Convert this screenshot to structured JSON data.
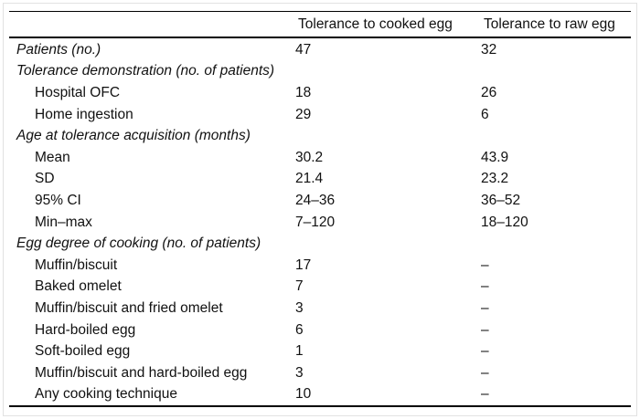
{
  "page": {
    "background": "#ffffff",
    "frame_color": "#e2e2e2",
    "rule_color": "#000000",
    "text_color": "#111111"
  },
  "table": {
    "header": {
      "col_label": "",
      "col_cooked": "Tolerance to cooked egg",
      "col_raw": "Tolerance to raw egg"
    },
    "rows": [
      {
        "label": "Patients (no.)",
        "italic": true,
        "indent": false,
        "cooked": "47",
        "raw": "32"
      },
      {
        "label": "Tolerance demonstration (no. of patients)",
        "italic": true,
        "indent": false,
        "cooked": "",
        "raw": ""
      },
      {
        "label": "Hospital OFC",
        "italic": false,
        "indent": true,
        "cooked": "18",
        "raw": "26"
      },
      {
        "label": "Home ingestion",
        "italic": false,
        "indent": true,
        "cooked": "29",
        "raw": "6"
      },
      {
        "label": "Age at tolerance acquisition (months)",
        "italic": true,
        "indent": false,
        "cooked": "",
        "raw": ""
      },
      {
        "label": "Mean",
        "italic": false,
        "indent": true,
        "cooked": "30.2",
        "raw": "43.9"
      },
      {
        "label": "SD",
        "italic": false,
        "indent": true,
        "cooked": "21.4",
        "raw": "23.2"
      },
      {
        "label": "95% CI",
        "italic": false,
        "indent": true,
        "cooked": "24–36",
        "raw": "36–52"
      },
      {
        "label": "Min–max",
        "italic": false,
        "indent": true,
        "cooked": "7–120",
        "raw": "18–120"
      },
      {
        "label": "Egg degree of cooking (no. of patients)",
        "italic": true,
        "indent": false,
        "cooked": "",
        "raw": ""
      },
      {
        "label": "Muffin/biscuit",
        "italic": false,
        "indent": true,
        "cooked": "17",
        "raw": "–"
      },
      {
        "label": "Baked omelet",
        "italic": false,
        "indent": true,
        "cooked": "7",
        "raw": "–"
      },
      {
        "label": "Muffin/biscuit and fried omelet",
        "italic": false,
        "indent": true,
        "cooked": "3",
        "raw": "–"
      },
      {
        "label": "Hard-boiled egg",
        "italic": false,
        "indent": true,
        "cooked": "6",
        "raw": "–"
      },
      {
        "label": "Soft-boiled egg",
        "italic": false,
        "indent": true,
        "cooked": "1",
        "raw": "–"
      },
      {
        "label": "Muffin/biscuit and hard-boiled egg",
        "italic": false,
        "indent": true,
        "cooked": "3",
        "raw": "–"
      },
      {
        "label": "Any cooking technique",
        "italic": false,
        "indent": true,
        "cooked": "10",
        "raw": "–"
      }
    ]
  },
  "chart_data": {
    "type": "table",
    "columns": [
      "",
      "Tolerance to cooked egg",
      "Tolerance to raw egg"
    ],
    "rows": [
      [
        "Patients (no.)",
        "47",
        "32"
      ],
      [
        "Tolerance demonstration (no. of patients)",
        "",
        ""
      ],
      [
        "Hospital OFC",
        "18",
        "26"
      ],
      [
        "Home ingestion",
        "29",
        "6"
      ],
      [
        "Age at tolerance acquisition (months)",
        "",
        ""
      ],
      [
        "Mean",
        "30.2",
        "43.9"
      ],
      [
        "SD",
        "21.4",
        "23.2"
      ],
      [
        "95% CI",
        "24–36",
        "36–52"
      ],
      [
        "Min–max",
        "7–120",
        "18–120"
      ],
      [
        "Egg degree of cooking (no. of patients)",
        "",
        ""
      ],
      [
        "Muffin/biscuit",
        "17",
        "–"
      ],
      [
        "Baked omelet",
        "7",
        "–"
      ],
      [
        "Muffin/biscuit and fried omelet",
        "3",
        "–"
      ],
      [
        "Hard-boiled egg",
        "6",
        "–"
      ],
      [
        "Soft-boiled egg",
        "1",
        "–"
      ],
      [
        "Muffin/biscuit and hard-boiled egg",
        "3",
        "–"
      ],
      [
        "Any cooking technique",
        "10",
        "–"
      ]
    ]
  }
}
